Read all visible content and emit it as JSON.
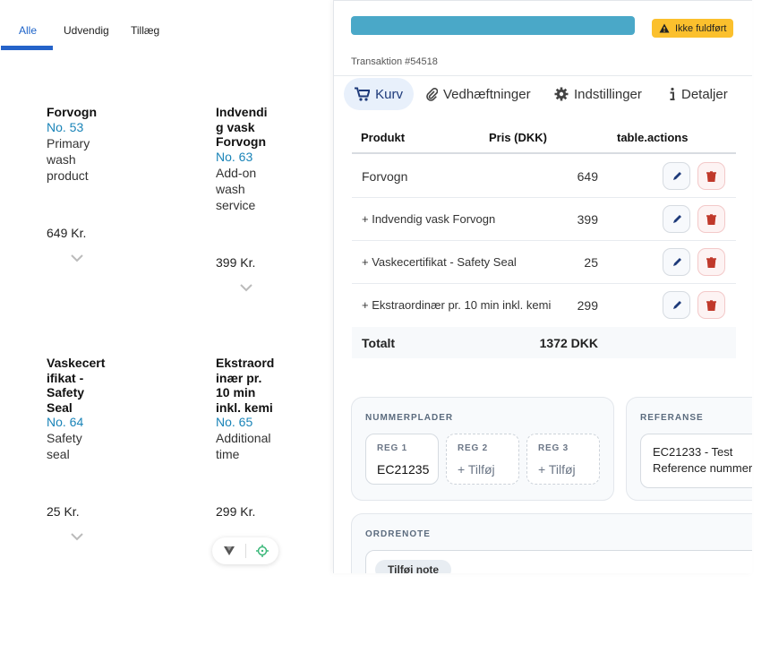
{
  "tabs": [
    "Alle",
    "Udvendig",
    "Tillæg"
  ],
  "products": [
    {
      "name": "Forvogn",
      "number": "No. 53",
      "description": "Primary wash product",
      "price": "649 Kr."
    },
    {
      "name": "Indvendig vask Forvogn",
      "number": "No. 63",
      "description": "Add-on wash service",
      "price": "399 Kr."
    },
    {
      "name": "Vaskecertifikat - Safety Seal",
      "number": "No. 64",
      "description": "Safety seal",
      "price": "25 Kr."
    },
    {
      "name": "Ekstraordinær pr. 10 min inkl. kemi",
      "number": "No. 65",
      "description": "Additional time",
      "price": "299 Kr."
    }
  ],
  "panel": {
    "status": "Ikke fuldført",
    "transaction": "Transaktion #54518",
    "tabs": [
      "Kurv",
      "Vedhæftninger",
      "Indstillinger",
      "Detaljer"
    ],
    "table": {
      "headers": [
        "Produkt",
        "Pris (DKK)",
        "table.actions"
      ],
      "rows": [
        [
          "Forvogn",
          649
        ],
        [
          "+ Indvendig vask Forvogn",
          399
        ],
        [
          "+ Vaskecertifikat - Safety Seal",
          25
        ],
        [
          "+ Ekstraordinær pr. 10 min inkl. kemi",
          299
        ]
      ],
      "total_label": "Totalt",
      "total": "1372 DKK"
    },
    "plates": {
      "title": "NUMMERPLADER",
      "fields": [
        {
          "label": "REG 1",
          "value": "EC21235"
        },
        {
          "label": "REG 2",
          "value": "+ Tilføj"
        },
        {
          "label": "REG 3",
          "value": "+ Tilføj"
        }
      ]
    },
    "reference": {
      "title": "REFERANSE",
      "value": "EC21233 - Test Reference nummer"
    },
    "order_note": {
      "title": "ORDRENOTE",
      "button": "Tilføj note"
    }
  }
}
